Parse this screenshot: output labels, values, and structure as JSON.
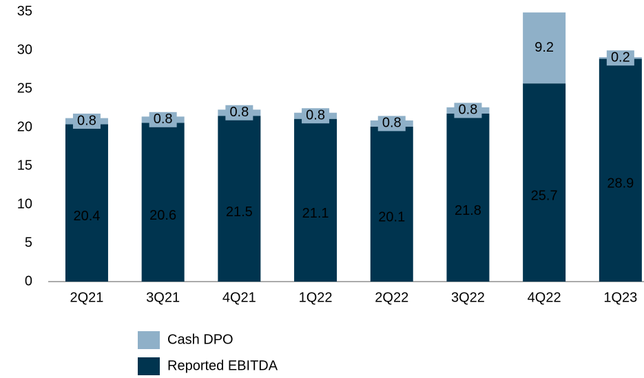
{
  "chart_data": {
    "type": "stacked_bar",
    "categories": [
      "2Q21",
      "3Q21",
      "4Q21",
      "1Q22",
      "2Q22",
      "3Q22",
      "4Q22",
      "1Q23"
    ],
    "series": [
      {
        "name": "Reported EBITDA",
        "color": "#00344f",
        "values": [
          20.4,
          20.6,
          21.5,
          21.1,
          20.1,
          21.8,
          25.7,
          28.9
        ]
      },
      {
        "name": "Cash DPO",
        "color": "#8fb0c8",
        "values": [
          0.8,
          0.8,
          0.8,
          0.8,
          0.8,
          0.8,
          9.2,
          0.2
        ]
      }
    ],
    "ylim": [
      0,
      35
    ],
    "yticks": [
      0,
      5,
      10,
      15,
      20,
      25,
      30,
      35
    ]
  }
}
